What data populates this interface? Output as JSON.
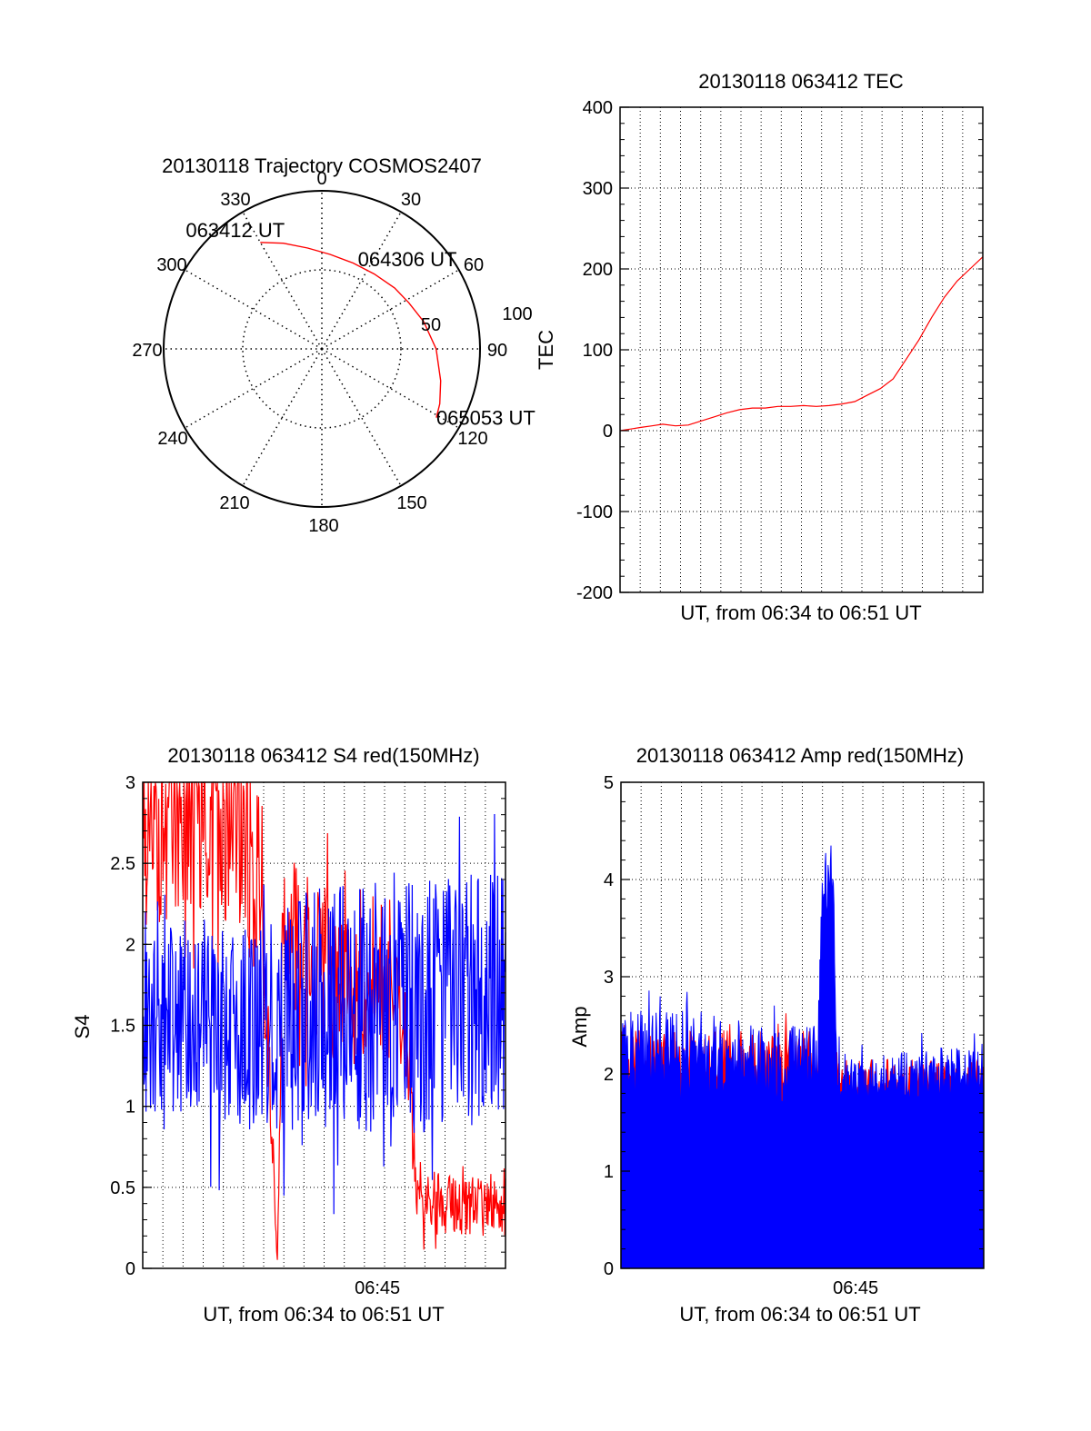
{
  "colors": {
    "red": "#ff0000",
    "blue": "#0000ff",
    "axis": "#000000",
    "grid": "#000000"
  },
  "chart_data": [
    {
      "id": "polar",
      "type": "scatter",
      "subtype": "polar-trajectory",
      "title": "20130118 Trajectory COSMOS2407",
      "angle_labels": [
        "0",
        "30",
        "60",
        "90",
        "150",
        "180",
        "210",
        "240",
        "270",
        "300",
        "330"
      ],
      "radial_labels": [
        "50",
        "100"
      ],
      "spoke_angles_deg": [
        0,
        30,
        60,
        90,
        120,
        150,
        180,
        210,
        240,
        270,
        300,
        330
      ],
      "radial_rings": [
        50,
        100
      ],
      "radial_max": 100,
      "series": [
        {
          "color": "#ff0000",
          "points": [
            {
              "az": 330,
              "el": 20
            },
            {
              "az": 340,
              "el": 26
            },
            {
              "az": 352,
              "el": 32
            },
            {
              "az": 5,
              "el": 36
            },
            {
              "az": 20,
              "el": 38
            },
            {
              "az": 35,
              "el": 38
            },
            {
              "az": 50,
              "el": 36
            },
            {
              "az": 62,
              "el": 34
            },
            {
              "az": 75,
              "el": 30
            },
            {
              "az": 90,
              "el": 25
            },
            {
              "az": 105,
              "el": 20
            },
            {
              "az": 115,
              "el": 16
            },
            {
              "az": 121,
              "el": 14
            }
          ]
        }
      ],
      "annotations": [
        {
          "text": "063412 UT",
          "az": 330,
          "el": 20
        },
        {
          "text": "064306 UT",
          "az": 62,
          "el": 34
        },
        {
          "text": "065053 UT",
          "az": 121,
          "el": 14
        }
      ],
      "overlap_label": "120"
    },
    {
      "id": "tec",
      "type": "line",
      "title": "20130118 063412 TEC",
      "xlabel": "UT, from 06:34 to 06:51 UT",
      "ylabel": "TEC",
      "xlim": [
        6.5667,
        6.85
      ],
      "ylim": [
        -200,
        400
      ],
      "yticks": [
        -200,
        -100,
        0,
        100,
        200,
        300,
        400
      ],
      "ytick_labels": [
        "-200",
        "-100",
        "0",
        "100",
        "200",
        "300",
        "400"
      ],
      "grid": true,
      "series": [
        {
          "color": "#ff0000",
          "x": [
            6.5667,
            6.575,
            6.583,
            6.5917,
            6.6,
            6.61,
            6.62,
            6.63,
            6.64,
            6.65,
            6.66,
            6.67,
            6.68,
            6.69,
            6.7,
            6.71,
            6.72,
            6.73,
            6.74,
            6.75,
            6.76,
            6.77,
            6.78,
            6.79,
            6.8,
            6.81,
            6.82,
            6.83,
            6.84,
            6.85
          ],
          "y": [
            0,
            2,
            4,
            6,
            8,
            6,
            7,
            12,
            17,
            22,
            26,
            28,
            28,
            30,
            30,
            31,
            30,
            31,
            33,
            36,
            44,
            52,
            64,
            88,
            112,
            140,
            165,
            185,
            200,
            215
          ]
        }
      ]
    },
    {
      "id": "s4",
      "type": "line",
      "title": "20130118 063412 S4 red(150MHz)",
      "xlabel": "UT, from 06:34 to 06:51 UT",
      "ylabel": "S4",
      "xlim": [
        6.5667,
        6.85
      ],
      "ylim": [
        0,
        3
      ],
      "yticks": [
        0,
        0.5,
        1,
        1.5,
        2,
        2.5,
        3
      ],
      "ytick_labels": [
        "0",
        "0.5",
        "1",
        "1.5",
        "2",
        "2.5",
        "3"
      ],
      "xticks": [
        6.75
      ],
      "xtick_labels": [
        "06:45"
      ],
      "grid": true,
      "series": [
        {
          "color": "#ff0000",
          "noise": true,
          "seed": 11,
          "n": 520,
          "x": [
            6.5667,
            6.62,
            6.64,
            6.66,
            6.672,
            6.675,
            6.68,
            6.7,
            6.72,
            6.74,
            6.76,
            6.775,
            6.78,
            6.8,
            6.82,
            6.85
          ],
          "y": [
            2.7,
            2.8,
            2.7,
            2.3,
            0.05,
            1.9,
            2.1,
            1.9,
            1.8,
            1.6,
            1.7,
            1.3,
            0.45,
            0.4,
            0.38,
            0.4
          ],
          "amp": [
            0.6,
            0.6,
            0.6,
            0.6,
            0.05,
            0.5,
            0.5,
            0.5,
            0.5,
            0.4,
            0.4,
            0.3,
            0.22,
            0.18,
            0.18,
            0.2
          ]
        },
        {
          "color": "#0000ff",
          "noise": true,
          "seed": 5,
          "n": 560,
          "x": [
            6.5667,
            6.6,
            6.65,
            6.7,
            6.75,
            6.8,
            6.85
          ],
          "y": [
            1.5,
            1.55,
            1.5,
            1.6,
            1.6,
            1.65,
            1.7
          ],
          "amp": [
            0.55,
            0.6,
            0.65,
            0.75,
            0.8,
            0.8,
            0.8
          ]
        }
      ]
    },
    {
      "id": "amp",
      "type": "area",
      "title": "20130118 063412 Amp red(150MHz)",
      "xlabel": "UT, from 06:34 to 06:51 UT",
      "ylabel": "Amp",
      "xlim": [
        6.5667,
        6.85
      ],
      "ylim": [
        0,
        5
      ],
      "yticks": [
        0,
        1,
        2,
        3,
        4,
        5
      ],
      "ytick_labels": [
        "0",
        "1",
        "2",
        "3",
        "4",
        "5"
      ],
      "xticks": [
        6.75
      ],
      "xtick_labels": [
        "06:45"
      ],
      "grid": true,
      "series": [
        {
          "color": "#ff0000",
          "noise": true,
          "seed": 21,
          "n": 420,
          "x": [
            6.5667,
            6.73,
            6.74,
            6.85
          ],
          "y": [
            2.1,
            2.1,
            1.9,
            1.9
          ],
          "amp": [
            0.35,
            0.35,
            0.25,
            0.25
          ]
        },
        {
          "color": "#0000ff",
          "noise": true,
          "seed": 3,
          "n": 620,
          "x": [
            6.5667,
            6.6,
            6.65,
            6.7,
            6.72,
            6.724,
            6.732,
            6.736,
            6.75,
            6.8,
            6.85
          ],
          "y": [
            2.2,
            2.2,
            2.1,
            2.1,
            2.1,
            4.0,
            3.9,
            2.0,
            1.9,
            1.95,
            2.0
          ],
          "amp": [
            0.45,
            0.45,
            0.4,
            0.4,
            0.4,
            0.35,
            0.35,
            0.3,
            0.25,
            0.3,
            0.3
          ]
        }
      ]
    }
  ]
}
